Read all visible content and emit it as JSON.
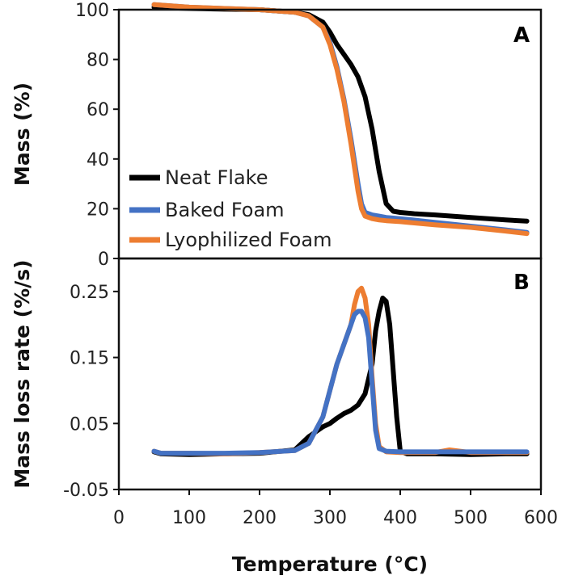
{
  "chart_data": [
    {
      "panel": "A",
      "type": "line",
      "ylabel": "Mass (%)",
      "xlabel": "Temperature (°C)",
      "xlim": [
        0,
        600
      ],
      "ylim": [
        0,
        100
      ],
      "xticks": [
        "0",
        "100",
        "200",
        "300",
        "400",
        "500",
        "600"
      ],
      "yticks": [
        "0",
        "20",
        "40",
        "60",
        "80",
        "100"
      ],
      "legend_position": "lower-left",
      "series": [
        {
          "name": "Neat Flake",
          "color": "#000000",
          "x": [
            50,
            100,
            150,
            200,
            250,
            270,
            290,
            300,
            310,
            320,
            330,
            340,
            350,
            360,
            370,
            380,
            390,
            400,
            420,
            450,
            500,
            550,
            580
          ],
          "y": [
            101,
            100.5,
            100.2,
            100,
            99,
            98,
            95,
            91,
            86,
            82,
            78,
            73,
            65,
            52,
            35,
            22,
            19,
            18.5,
            18,
            17.5,
            16.5,
            15.5,
            15
          ]
        },
        {
          "name": "Baked Foam",
          "color": "#4472C4",
          "x": [
            50,
            100,
            150,
            200,
            250,
            270,
            290,
            300,
            310,
            320,
            330,
            340,
            345,
            350,
            360,
            370,
            380,
            400,
            450,
            500,
            550,
            580
          ],
          "y": [
            102,
            101,
            100.5,
            100,
            99,
            97.5,
            93,
            87,
            77,
            64,
            48,
            30,
            22,
            18.5,
            17.5,
            17,
            16.5,
            16,
            14.5,
            13,
            11.5,
            10.5
          ]
        },
        {
          "name": "Lyophilized Foam",
          "color": "#ED7D31",
          "x": [
            50,
            100,
            150,
            200,
            250,
            270,
            290,
            300,
            310,
            320,
            330,
            340,
            345,
            350,
            360,
            370,
            380,
            400,
            450,
            500,
            550,
            580
          ],
          "y": [
            102,
            101,
            100.5,
            100,
            99,
            97.5,
            93,
            86,
            76,
            63,
            46,
            27,
            20,
            17,
            16,
            15.5,
            15.2,
            14.8,
            13.5,
            12.5,
            11,
            10
          ]
        }
      ]
    },
    {
      "panel": "B",
      "type": "line",
      "ylabel": "Mass loss rate (%/s)",
      "xlabel": "Temperature (°C)",
      "xlim": [
        0,
        600
      ],
      "ylim": [
        -0.05,
        0.3
      ],
      "xticks": [
        "0",
        "100",
        "200",
        "300",
        "400",
        "500",
        "600"
      ],
      "yticks": [
        "-0.05",
        "0.05",
        "0.15",
        "0.25"
      ],
      "series": [
        {
          "name": "Neat Flake",
          "color": "#000000",
          "x": [
            50,
            60,
            100,
            150,
            200,
            250,
            270,
            290,
            300,
            310,
            320,
            330,
            340,
            350,
            360,
            365,
            370,
            375,
            380,
            385,
            390,
            395,
            400,
            410,
            450,
            500,
            550,
            580
          ],
          "y": [
            0.007,
            0.004,
            0.003,
            0.004,
            0.005,
            0.01,
            0.03,
            0.045,
            0.05,
            0.058,
            0.065,
            0.07,
            0.078,
            0.095,
            0.14,
            0.19,
            0.22,
            0.24,
            0.235,
            0.2,
            0.13,
            0.06,
            0.008,
            0.004,
            0.004,
            0.003,
            0.004,
            0.004
          ]
        },
        {
          "name": "Lyophilized Foam",
          "color": "#ED7D31",
          "x": [
            50,
            60,
            100,
            150,
            200,
            250,
            270,
            290,
            300,
            310,
            320,
            330,
            335,
            340,
            345,
            350,
            355,
            360,
            365,
            370,
            380,
            400,
            450,
            470,
            500,
            550,
            580
          ],
          "y": [
            0.008,
            0.005,
            0.005,
            0.004,
            0.006,
            0.009,
            0.02,
            0.06,
            0.1,
            0.14,
            0.17,
            0.2,
            0.23,
            0.25,
            0.255,
            0.24,
            0.2,
            0.12,
            0.05,
            0.015,
            0.007,
            0.006,
            0.006,
            0.01,
            0.006,
            0.006,
            0.006
          ]
        },
        {
          "name": "Baked Foam",
          "color": "#4472C4",
          "x": [
            50,
            60,
            100,
            150,
            200,
            250,
            270,
            290,
            300,
            310,
            320,
            330,
            335,
            340,
            345,
            350,
            355,
            360,
            365,
            370,
            380,
            400,
            450,
            500,
            550,
            580
          ],
          "y": [
            0.008,
            0.005,
            0.005,
            0.005,
            0.006,
            0.009,
            0.02,
            0.06,
            0.1,
            0.14,
            0.17,
            0.2,
            0.215,
            0.22,
            0.22,
            0.21,
            0.18,
            0.11,
            0.04,
            0.012,
            0.008,
            0.007,
            0.007,
            0.007,
            0.007,
            0.007
          ]
        }
      ]
    }
  ]
}
